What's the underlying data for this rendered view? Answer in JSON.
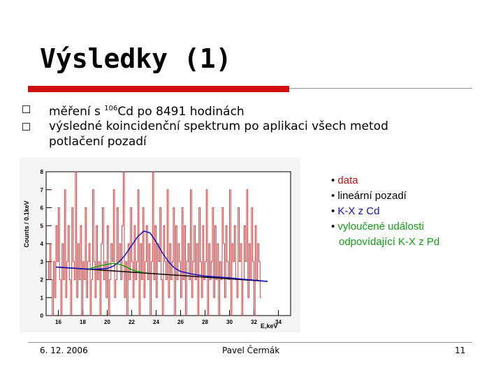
{
  "slide": {
    "title": "Výsledky (1)",
    "bullets": [
      {
        "pre": "měření s ",
        "sup": "106",
        "post": "Cd po 8491 hodinách"
      },
      {
        "text_line1": "výsledné koincidenční spektrum po aplikaci všech metod",
        "text_line2": "potlačení pozadí"
      }
    ],
    "legend": [
      {
        "bullet": "• ",
        "label": "data",
        "color": "#d01010"
      },
      {
        "bullet": "• ",
        "label": "lineární pozadí",
        "color": "#000000"
      },
      {
        "bullet": "• ",
        "label": "K-X z Cd",
        "color": "#1010c0"
      },
      {
        "bullet": "• ",
        "label": "vyloučené události",
        "color": "#10a010"
      },
      {
        "bullet": "",
        "label": "odpovídající K-X z Pd",
        "color": "#10a010"
      }
    ],
    "footer": {
      "date": "6. 12. 2006",
      "author": "Pavel Čermák",
      "page": "11"
    }
  },
  "chart_data": {
    "type": "line",
    "title": "",
    "xlabel": "E,keV",
    "ylabel": "Counts / 0.1keV",
    "xlim": [
      15,
      35
    ],
    "ylim": [
      0,
      8
    ],
    "xticks": [
      "16",
      "18",
      "20",
      "22",
      "24",
      "26",
      "28",
      "30",
      "32",
      "34"
    ],
    "yticks": [
      "0",
      "1",
      "2",
      "3",
      "4",
      "5",
      "6",
      "7",
      "8"
    ],
    "series": [
      {
        "name": "data",
        "color": "#d01010",
        "step": true,
        "x_start": 15.1,
        "bin_width": 0.1,
        "values": [
          3,
          2,
          4,
          2,
          0,
          3,
          1,
          5,
          3,
          6,
          2,
          0,
          4,
          2,
          7,
          1,
          3,
          5,
          2,
          0,
          6,
          3,
          2,
          8,
          1,
          4,
          2,
          5,
          0,
          3,
          2,
          6,
          1,
          3,
          4,
          0,
          2,
          7,
          3,
          1,
          5,
          2,
          3,
          0,
          4,
          6,
          2,
          3,
          1,
          5,
          0,
          2,
          4,
          3,
          7,
          1,
          2,
          6,
          3,
          4,
          2,
          5,
          8,
          1,
          3,
          0,
          4,
          2,
          6,
          3,
          1,
          5,
          2,
          3,
          7,
          0,
          4,
          2,
          6,
          1,
          3,
          5,
          2,
          4,
          0,
          3,
          8,
          2,
          5,
          1,
          4,
          3,
          6,
          2,
          0,
          5,
          3,
          2,
          7,
          1,
          4,
          2,
          3,
          6,
          0,
          5,
          2,
          4,
          3,
          1,
          6,
          2,
          5,
          0,
          3,
          4,
          2,
          7,
          1,
          3,
          5,
          2,
          4,
          0,
          6,
          3,
          1,
          5,
          2,
          3,
          7,
          0,
          4,
          2,
          3,
          6,
          1,
          5,
          2,
          4,
          0,
          3,
          2,
          6,
          4,
          1,
          5,
          3,
          2,
          7,
          0,
          4,
          3,
          5,
          2,
          1,
          6,
          3,
          4,
          0,
          2,
          5,
          3,
          7,
          1,
          4,
          2,
          6,
          3,
          0,
          5,
          2,
          4,
          3,
          1
        ]
      },
      {
        "name": "lineární pozadí",
        "color": "#000000",
        "x": [
          15.8,
          33.1
        ],
        "y": [
          2.7,
          1.9
        ]
      },
      {
        "name": "K-X z Cd",
        "color": "#1010c0",
        "x": [
          15.8,
          17,
          18,
          19,
          20,
          20.5,
          21,
          21.5,
          22,
          22.5,
          23,
          23.5,
          24,
          24.5,
          25,
          25.5,
          26,
          27,
          28,
          29,
          30,
          31,
          32,
          33.1
        ],
        "y": [
          2.7,
          2.65,
          2.6,
          2.58,
          2.62,
          2.75,
          3.0,
          3.4,
          3.9,
          4.4,
          4.7,
          4.6,
          4.1,
          3.5,
          3.0,
          2.65,
          2.45,
          2.3,
          2.2,
          2.15,
          2.1,
          2.03,
          1.97,
          1.9
        ]
      },
      {
        "name": "vyloučené události",
        "color": "#10a010",
        "x": [
          18.5,
          19,
          19.5,
          20,
          20.5,
          21,
          21.5,
          22,
          22.5,
          23
        ],
        "y": [
          2.6,
          2.7,
          2.78,
          2.85,
          2.9,
          2.85,
          2.72,
          2.55,
          2.45,
          2.4
        ]
      }
    ]
  }
}
